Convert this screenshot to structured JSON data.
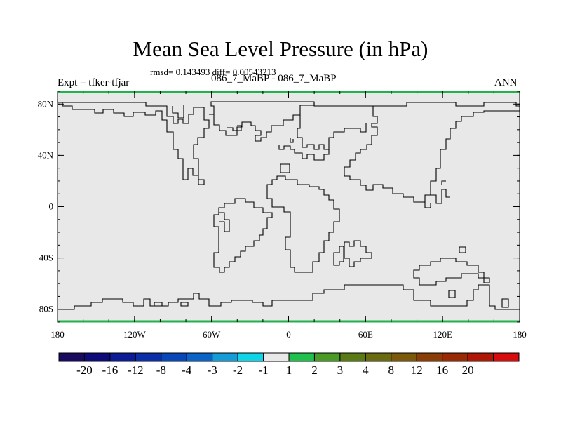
{
  "title": "Mean Sea Level Pressure (in hPa)",
  "stats": "rmsd= 0.143493 diff= 0.00543213",
  "experiment_label": "Expt = tfker-tfjar",
  "experiment_ids": "086_7_MaBP - 086_7_MaBP",
  "season": "ANN",
  "map": {
    "projection": "cylindrical-equidistant",
    "background_color": "#e8e8e8",
    "border_color": "#22b24c",
    "coastline_style": "model-grid outlines",
    "lon_range": [
      -180,
      180
    ],
    "lat_range": [
      -90,
      90
    ],
    "lon_ticks": [
      {
        "value": -180,
        "label": "180"
      },
      {
        "value": -120,
        "label": "120W"
      },
      {
        "value": -60,
        "label": "60W"
      },
      {
        "value": 0,
        "label": "0"
      },
      {
        "value": 60,
        "label": "60E"
      },
      {
        "value": 120,
        "label": "120E"
      },
      {
        "value": 180,
        "label": "180"
      }
    ],
    "lat_ticks": [
      {
        "value": 80,
        "label": "80N"
      },
      {
        "value": 40,
        "label": "40N"
      },
      {
        "value": 0,
        "label": "0"
      },
      {
        "value": -40,
        "label": "40S"
      },
      {
        "value": -80,
        "label": "80S"
      }
    ],
    "field_value_everywhere": "-1 to 1"
  },
  "colorbar": {
    "colors": [
      "#1a0a5e",
      "#0d0a7a",
      "#0c1c96",
      "#0a2fa8",
      "#0747b8",
      "#0a63c7",
      "#159bd6",
      "#0fd3e6",
      "#e8e8e8",
      "#1fc04c",
      "#4a9a26",
      "#5a7a16",
      "#6a6a10",
      "#7a5a0a",
      "#8a3e06",
      "#9a2a04",
      "#b01604",
      "#d80c0c"
    ],
    "labels": [
      "-20",
      "-16",
      "-12",
      "-8",
      "-4",
      "-3",
      "-2",
      "-1",
      "1",
      "2",
      "3",
      "4",
      "8",
      "12",
      "16",
      "20"
    ]
  }
}
